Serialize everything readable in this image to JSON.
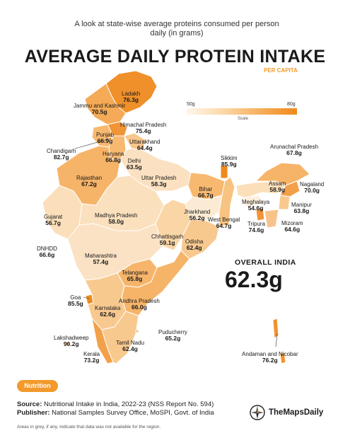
{
  "header": {
    "subtitle": "A look at state-wise average proteins consumed per person daily (in grams)",
    "title": "AVERAGE DAILY PROTEIN INTAKE",
    "per_capita": "PER CAPITA"
  },
  "scale": {
    "min_label": "50g",
    "max_label": "80g",
    "label": "Scale",
    "min": 50,
    "max": 80
  },
  "colors": {
    "accent": "#f39a2c",
    "low": "#fff6ea",
    "high": "#ef8a1c",
    "text": "#1a1a1a"
  },
  "regions": [
    {
      "name": "Ladakh",
      "value": "76.3g"
    },
    {
      "name": "Jammu and Kashmir",
      "value": "70.5g"
    },
    {
      "name": "Himachal Pradesh",
      "value": "75.4g"
    },
    {
      "name": "Punjab",
      "value": "66.9g"
    },
    {
      "name": "Uttarakhand",
      "value": "64.4g"
    },
    {
      "name": "Chandigarh",
      "value": "82.7g"
    },
    {
      "name": "Haryana",
      "value": "66.8g"
    },
    {
      "name": "Delhi",
      "value": "63.5g"
    },
    {
      "name": "Rajasthan",
      "value": "67.2g"
    },
    {
      "name": "Uttar Pradesh",
      "value": "58.3g"
    },
    {
      "name": "Sikkim",
      "value": "85.9g"
    },
    {
      "name": "Arunachal Pradesh",
      "value": "67.8g"
    },
    {
      "name": "Bihar",
      "value": "66.7g"
    },
    {
      "name": "Assam",
      "value": "58.9g"
    },
    {
      "name": "Nagaland",
      "value": "70.0g"
    },
    {
      "name": "Meghalaya",
      "value": "54.6g"
    },
    {
      "name": "Manipur",
      "value": "63.8g"
    },
    {
      "name": "Jharkhand",
      "value": "56.2g"
    },
    {
      "name": "West Bengal",
      "value": "64.7g"
    },
    {
      "name": "Tripura",
      "value": "74.6g"
    },
    {
      "name": "Mizoram",
      "value": "64.6g"
    },
    {
      "name": "Gujarat",
      "value": "56.7g"
    },
    {
      "name": "Madhya Pradesh",
      "value": "58.0g"
    },
    {
      "name": "Chhattisgarh",
      "value": "59.1g"
    },
    {
      "name": "Odisha",
      "value": "62.4g"
    },
    {
      "name": "DNHDD",
      "value": "66.6g"
    },
    {
      "name": "Maharashtra",
      "value": "57.4g"
    },
    {
      "name": "Telangana",
      "value": "65.8g"
    },
    {
      "name": "Goa",
      "value": "85.5g"
    },
    {
      "name": "Andhra Pradesh",
      "value": "66.0g"
    },
    {
      "name": "Karnataka",
      "value": "62.6g"
    },
    {
      "name": "Puducherry",
      "value": "65.2g"
    },
    {
      "name": "Lakshadweep",
      "value": "90.2g"
    },
    {
      "name": "Tamil Nadu",
      "value": "62.4g"
    },
    {
      "name": "Kerala",
      "value": "73.2g"
    },
    {
      "name": "Andaman and Nicobar",
      "value": "76.2g"
    }
  ],
  "overall": {
    "label": "OVERALL INDIA",
    "value": "62.3g"
  },
  "footer": {
    "tag": "Nutrition",
    "source_label": "Source:",
    "source_text": "Nutritional Intake in India, 2022-23 (NSS Report No. 594)",
    "publisher_label": "Publisher:",
    "publisher_text": "National Samples Survey Office, MoSPI, Govt. of India",
    "note": "Areas in grey, if any, indicate that data was not available for the region.",
    "brand": "TheMapsDaily",
    "brand_icon": "compass-icon"
  }
}
